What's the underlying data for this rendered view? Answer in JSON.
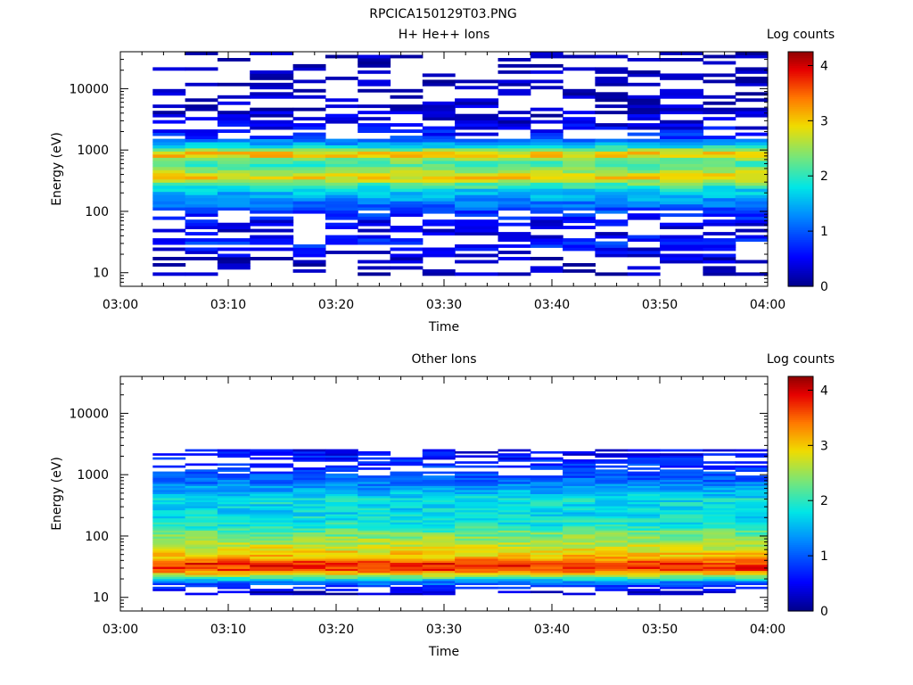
{
  "figure_title": "RPCICA150129T03.PNG",
  "chart_data": [
    {
      "type": "heatmap",
      "title": "H+ He++ Ions",
      "xlabel": "Time",
      "ylabel": "Energy (eV)",
      "x_ticks": [
        "03:00",
        "03:10",
        "03:20",
        "03:30",
        "03:40",
        "03:50",
        "04:00"
      ],
      "xlim": [
        "03:00",
        "04:00"
      ],
      "y_scale": "log",
      "y_ticks": [
        10,
        100,
        1000,
        10000
      ],
      "y_tick_labels": [
        "10",
        "100",
        "1000",
        "10000"
      ],
      "ylim": [
        6,
        40000
      ],
      "colorbar": {
        "label": "Log counts",
        "range": [
          0,
          4.25
        ],
        "ticks": [
          0,
          1,
          2,
          3,
          4
        ],
        "colormap": "rainbow"
      },
      "time_bins": [
        "03:03",
        "03:06",
        "03:09",
        "03:12",
        "03:16",
        "03:19",
        "03:22",
        "03:25",
        "03:28",
        "03:31",
        "03:35",
        "03:38",
        "03:41",
        "03:44",
        "03:47",
        "03:50",
        "03:54",
        "03:57"
      ],
      "energy_profile": [
        {
          "energy": 12,
          "counts": 0.1
        },
        {
          "energy": 25,
          "counts": 0.5
        },
        {
          "energy": 30,
          "counts": 0.8
        },
        {
          "energy": 50,
          "counts": 0.2
        },
        {
          "energy": 210,
          "counts": 1.6
        },
        {
          "energy": 280,
          "counts": 2.2
        },
        {
          "energy": 350,
          "counts": 2.9
        },
        {
          "energy": 420,
          "counts": 2.7
        },
        {
          "energy": 550,
          "counts": 2.1
        },
        {
          "energy": 700,
          "counts": 2.3
        },
        {
          "energy": 850,
          "counts": 3.2
        },
        {
          "energy": 1000,
          "counts": 2.4
        },
        {
          "energy": 1200,
          "counts": 1.6
        },
        {
          "energy": 1700,
          "counts": 0.7
        },
        {
          "energy": 3000,
          "counts": 0.3
        },
        {
          "energy": 10000,
          "counts": 0.1
        },
        {
          "energy": 40000,
          "counts": 0.1
        }
      ]
    },
    {
      "type": "heatmap",
      "title": "Other Ions",
      "xlabel": "Time",
      "ylabel": "Energy (eV)",
      "x_ticks": [
        "03:00",
        "03:10",
        "03:20",
        "03:30",
        "03:40",
        "03:50",
        "04:00"
      ],
      "xlim": [
        "03:00",
        "04:00"
      ],
      "y_scale": "log",
      "y_ticks": [
        10,
        100,
        1000,
        10000
      ],
      "y_tick_labels": [
        "10",
        "100",
        "1000",
        "10000"
      ],
      "ylim": [
        6,
        40000
      ],
      "colorbar": {
        "label": "Log counts",
        "range": [
          0,
          4.25
        ],
        "ticks": [
          0,
          1,
          2,
          3,
          4
        ],
        "colormap": "rainbow"
      },
      "time_bins": [
        "03:03",
        "03:06",
        "03:09",
        "03:12",
        "03:16",
        "03:19",
        "03:22",
        "03:25",
        "03:28",
        "03:31",
        "03:35",
        "03:38",
        "03:41",
        "03:44",
        "03:47",
        "03:50",
        "03:54",
        "03:57"
      ],
      "energy_profile": [
        {
          "energy": 12,
          "counts": 0.2
        },
        {
          "energy": 18,
          "counts": 1.2
        },
        {
          "energy": 22,
          "counts": 2.4
        },
        {
          "energy": 28,
          "counts": 3.6
        },
        {
          "energy": 35,
          "counts": 3.8
        },
        {
          "energy": 45,
          "counts": 3.1
        },
        {
          "energy": 60,
          "counts": 2.8
        },
        {
          "energy": 90,
          "counts": 2.5
        },
        {
          "energy": 150,
          "counts": 1.9
        },
        {
          "energy": 250,
          "counts": 1.7
        },
        {
          "energy": 400,
          "counts": 1.8
        },
        {
          "energy": 700,
          "counts": 1.2
        },
        {
          "energy": 1000,
          "counts": 0.9
        },
        {
          "energy": 1500,
          "counts": 0.8
        },
        {
          "energy": 2200,
          "counts": 0.5
        }
      ]
    }
  ]
}
